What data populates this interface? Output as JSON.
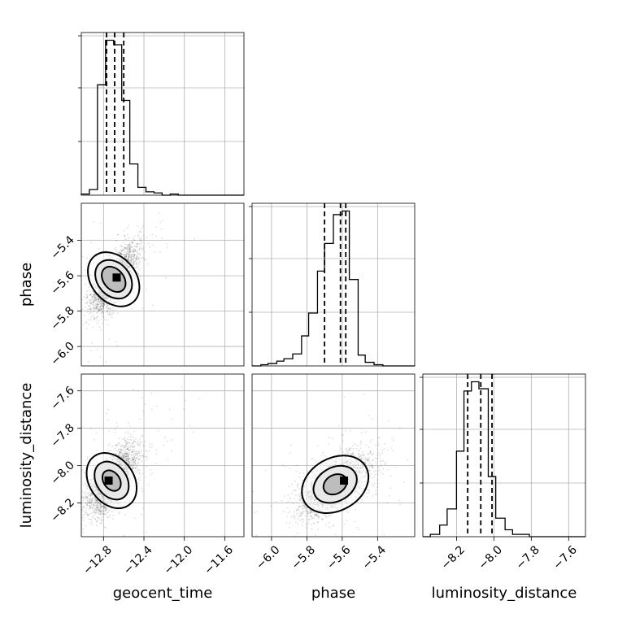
{
  "chart_data": {
    "type": "corner",
    "parameters": [
      "geocent_time",
      "phase",
      "luminosity_distance"
    ],
    "axis_ticks": {
      "geocent_time": [
        -12.8,
        -12.4,
        -12.0,
        -11.6
      ],
      "phase": [
        -6.0,
        -5.8,
        -5.6,
        -5.4
      ],
      "luminosity_distance": [
        -8.2,
        -8.0,
        -7.8,
        -7.6
      ]
    },
    "axis_tick_labels": {
      "geocent_time": [
        "−12.8",
        "−12.4",
        "−12.0",
        "−11.6"
      ],
      "phase": [
        "−6.0",
        "−5.8",
        "−5.6",
        "−5.4"
      ],
      "luminosity_distance": [
        "−8.2",
        "−8.0",
        "−7.8",
        "−7.6"
      ]
    },
    "axis_ranges": {
      "geocent_time": [
        -13.02,
        -11.41
      ],
      "phase": [
        -6.11,
        -5.19
      ],
      "luminosity_distance": [
        -8.38,
        -7.51
      ]
    },
    "grid": true,
    "histograms": [
      {
        "parameter": "geocent_time",
        "bin_edges": [
          -13.02,
          -12.94,
          -12.86,
          -12.78,
          -12.7,
          -12.62,
          -12.54,
          -12.46,
          -12.38,
          -12.3,
          -12.22,
          -12.14,
          -12.06,
          -11.98,
          -11.9,
          -11.82,
          -11.74,
          -11.66,
          -11.58,
          -11.5,
          -11.41
        ],
        "counts": [
          1,
          5,
          99,
          139,
          135,
          85,
          28,
          7,
          3,
          2,
          0,
          1,
          0,
          0,
          0,
          0,
          0,
          0,
          0,
          0
        ],
        "quantiles": [
          -12.77,
          -12.69,
          -12.6
        ]
      },
      {
        "parameter": "phase",
        "bin_edges": [
          -6.11,
          -6.06,
          -6.02,
          -5.97,
          -5.93,
          -5.88,
          -5.83,
          -5.79,
          -5.74,
          -5.7,
          -5.65,
          -5.6,
          -5.56,
          -5.51,
          -5.47,
          -5.42,
          -5.37,
          -5.33,
          -5.28,
          -5.24,
          -5.19
        ],
        "counts": [
          0,
          1,
          2,
          4,
          6,
          10,
          25,
          44,
          79,
          102,
          126,
          129,
          72,
          9,
          3,
          1,
          0,
          0,
          0,
          0
        ],
        "quantiles": [
          -5.7,
          -5.61,
          -5.58
        ]
      },
      {
        "parameter": "luminosity_distance",
        "bin_edges": [
          -8.38,
          -8.34,
          -8.29,
          -8.25,
          -8.2,
          -8.16,
          -8.12,
          -8.08,
          -8.03,
          -7.99,
          -7.94,
          -7.9,
          -7.86,
          -7.81,
          -7.77,
          -7.73,
          -7.68,
          -7.64,
          -7.6,
          -7.55,
          -7.51
        ],
        "counts": [
          0,
          1,
          5,
          12,
          37,
          63,
          67,
          64,
          26,
          8,
          3,
          1,
          1,
          0,
          0,
          0,
          0,
          0,
          0,
          0
        ],
        "quantiles": [
          -8.14,
          -8.07,
          -8.01
        ]
      }
    ],
    "scatter_panels": [
      {
        "x": "geocent_time",
        "y": "phase",
        "mean": [
          -12.7,
          -5.62
        ],
        "std": [
          0.11,
          0.09
        ],
        "corr": 0.7,
        "peak": [
          -12.67,
          -5.61
        ],
        "contours": [
          {
            "rx": 0.1,
            "ry": 0.08,
            "angle_deg": -40,
            "fill": "#bdbdbd"
          },
          {
            "rx": 0.16,
            "ry": 0.12,
            "angle_deg": -40,
            "fill": "#e8e8e8"
          },
          {
            "rx": 0.22,
            "ry": 0.17,
            "angle_deg": -40,
            "fill": "#ffffff"
          }
        ]
      },
      {
        "x": "geocent_time",
        "y": "luminosity_distance",
        "mean": [
          -12.72,
          -8.08
        ],
        "std": [
          0.12,
          0.09
        ],
        "corr": 0.65,
        "peak": [
          -12.75,
          -8.08
        ],
        "contours": [
          {
            "rx": 0.08,
            "ry": 0.06,
            "angle_deg": -35,
            "fill": "#bdbdbd"
          },
          {
            "rx": 0.15,
            "ry": 0.11,
            "angle_deg": -35,
            "fill": "#e8e8e8"
          },
          {
            "rx": 0.22,
            "ry": 0.16,
            "angle_deg": -35,
            "fill": "#ffffff"
          }
        ]
      },
      {
        "x": "phase",
        "y": "luminosity_distance",
        "mean": [
          -5.64,
          -8.1
        ],
        "std": [
          0.1,
          0.08
        ],
        "corr": 0.6,
        "peak": [
          -5.59,
          -8.08
        ],
        "contours": [
          {
            "rx": 0.07,
            "ry": 0.05,
            "angle_deg": -30,
            "fill": "#bdbdbd"
          },
          {
            "rx": 0.13,
            "ry": 0.09,
            "angle_deg": -30,
            "fill": "#e8e8e8"
          },
          {
            "rx": 0.2,
            "ry": 0.14,
            "angle_deg": -30,
            "fill": "#ffffff"
          }
        ]
      }
    ],
    "colors": {
      "scatter": "#000000",
      "peak": "#000000",
      "grid": "#b0b0b0"
    }
  }
}
